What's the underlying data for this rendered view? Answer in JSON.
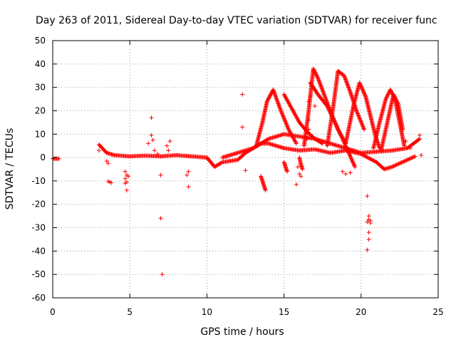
{
  "chart_data": {
    "type": "scatter",
    "title": "Day 263 of 2011, Sidereal Day-to-day VTEC variation (SDTVAR) for receiver func",
    "xlabel": "GPS time / hours",
    "ylabel": "SDTVAR / TECUs",
    "xlim": [
      0,
      25
    ],
    "ylim": [
      -60,
      50
    ],
    "xticks": [
      0,
      5,
      10,
      15,
      20,
      25
    ],
    "yticks": [
      -60,
      -50,
      -40,
      -30,
      -20,
      -10,
      0,
      10,
      20,
      30,
      40,
      50
    ],
    "grid": true,
    "marker": "+",
    "color": "#ff0000",
    "dense_tracks": [
      {
        "name": "track-early",
        "x": [
          0.0,
          0.2,
          0.4
        ],
        "y": [
          -0.5,
          -0.5,
          -0.5
        ]
      },
      {
        "name": "track-main-low",
        "x": [
          3.0,
          3.5,
          4.0,
          5.0,
          6.0,
          7.0,
          8.0,
          9.0,
          10.0,
          10.5,
          11.0,
          12.0,
          12.5,
          13.0,
          13.5,
          14.0,
          15.0,
          16.0,
          17.0,
          18.0,
          19.0,
          20.0,
          21.0,
          21.5,
          22.0,
          23.0,
          23.5
        ],
        "y": [
          5.5,
          2.0,
          1.0,
          0.5,
          0.8,
          0.5,
          1.0,
          0.5,
          0.0,
          -4.0,
          -2.0,
          -1.0,
          2.0,
          4.0,
          6.0,
          6.0,
          4.0,
          3.0,
          3.5,
          2.0,
          3.0,
          1.5,
          -2.0,
          -5.0,
          -4.0,
          -1.0,
          0.5
        ]
      },
      {
        "name": "track-main-high",
        "x": [
          11.0,
          12.0,
          13.0,
          14.0,
          15.0,
          16.0,
          17.0,
          18.0,
          19.0,
          20.0,
          21.0,
          22.0,
          23.0,
          23.8
        ],
        "y": [
          0.0,
          2.0,
          4.0,
          8.0,
          10.0,
          9.0,
          8.0,
          6.0,
          4.0,
          2.0,
          2.5,
          3.0,
          4.0,
          8.0
        ]
      },
      {
        "name": "arc-14",
        "x": [
          13.2,
          13.6,
          13.9,
          14.3,
          14.8,
          15.3,
          15.8
        ],
        "y": [
          5.0,
          15.0,
          24.0,
          29.0,
          20.0,
          12.0,
          6.0
        ]
      },
      {
        "name": "arc-15",
        "x": [
          15.0,
          15.5,
          16.0,
          16.5,
          17.0,
          17.5
        ],
        "y": [
          27.0,
          21.0,
          15.0,
          11.0,
          8.0,
          6.0
        ]
      },
      {
        "name": "arc-17",
        "x": [
          16.3,
          16.6,
          16.9,
          17.2,
          17.6,
          18.0,
          18.5,
          19.0
        ],
        "y": [
          5.0,
          20.0,
          38.0,
          34.0,
          27.0,
          20.0,
          12.0,
          6.0
        ]
      },
      {
        "name": "arc-18",
        "x": [
          16.7,
          17.2,
          17.8,
          18.3,
          18.8,
          19.2,
          19.6
        ],
        "y": [
          32.0,
          27.0,
          22.0,
          15.0,
          8.0,
          2.0,
          -4.0
        ]
      },
      {
        "name": "arc-19",
        "x": [
          17.8,
          18.2,
          18.5,
          18.9,
          19.3,
          19.7,
          20.2
        ],
        "y": [
          5.0,
          22.0,
          37.0,
          35.0,
          28.0,
          20.0,
          12.0
        ]
      },
      {
        "name": "arc-20",
        "x": [
          19.0,
          19.5,
          19.9,
          20.3,
          20.6,
          20.9,
          21.2
        ],
        "y": [
          6.0,
          22.0,
          32.0,
          26.0,
          18.0,
          10.0,
          4.0
        ]
      },
      {
        "name": "arc-22",
        "x": [
          20.8,
          21.2,
          21.6,
          21.9,
          22.2,
          22.5,
          22.8
        ],
        "y": [
          4.0,
          15.0,
          25.0,
          29.0,
          25.0,
          15.0,
          5.0
        ]
      },
      {
        "name": "arc-22b",
        "x": [
          21.3,
          21.7,
          22.1,
          22.4,
          22.7
        ],
        "y": [
          3.0,
          15.0,
          27.0,
          23.0,
          12.0
        ]
      },
      {
        "name": "dip-14",
        "x": [
          13.5,
          13.6,
          13.7,
          13.8
        ],
        "y": [
          -8.0,
          -10.0,
          -12.0,
          -14.0
        ]
      },
      {
        "name": "dip-15",
        "x": [
          15.0,
          15.1,
          15.2
        ],
        "y": [
          -2.0,
          -4.0,
          -6.0
        ]
      },
      {
        "name": "dip-16",
        "x": [
          16.0,
          16.1,
          16.2
        ],
        "y": [
          0.0,
          -3.0,
          -5.0
        ]
      }
    ],
    "points": [
      {
        "x": 3.7,
        "y": -10.5
      },
      {
        "x": 3.6,
        "y": -10.2
      },
      {
        "x": 3.8,
        "y": -10.8
      },
      {
        "x": 4.7,
        "y": -6.0
      },
      {
        "x": 4.8,
        "y": -7.5
      },
      {
        "x": 4.7,
        "y": -9.0
      },
      {
        "x": 4.8,
        "y": -10.5
      },
      {
        "x": 4.7,
        "y": -11.0
      },
      {
        "x": 4.8,
        "y": -14.0
      },
      {
        "x": 4.9,
        "y": -8.0
      },
      {
        "x": 6.2,
        "y": 6.0
      },
      {
        "x": 6.4,
        "y": 17.0
      },
      {
        "x": 6.4,
        "y": 9.5
      },
      {
        "x": 6.5,
        "y": 7.5
      },
      {
        "x": 6.6,
        "y": 3.0
      },
      {
        "x": 6.8,
        "y": 1.5
      },
      {
        "x": 7.0,
        "y": -7.5
      },
      {
        "x": 7.0,
        "y": -26.0
      },
      {
        "x": 7.1,
        "y": -50.0
      },
      {
        "x": 7.4,
        "y": 5.0
      },
      {
        "x": 7.5,
        "y": 3.0
      },
      {
        "x": 7.6,
        "y": 7.0
      },
      {
        "x": 8.8,
        "y": -12.5
      },
      {
        "x": 8.7,
        "y": -7.5
      },
      {
        "x": 8.8,
        "y": -6.0
      },
      {
        "x": 12.3,
        "y": 27.0
      },
      {
        "x": 12.3,
        "y": 13.0
      },
      {
        "x": 12.5,
        "y": -5.5
      },
      {
        "x": 3.0,
        "y": 3.0
      },
      {
        "x": 3.5,
        "y": -1.5
      },
      {
        "x": 3.6,
        "y": -2.5
      },
      {
        "x": 15.9,
        "y": -4.0
      },
      {
        "x": 16.0,
        "y": -7.0
      },
      {
        "x": 16.1,
        "y": -8.0
      },
      {
        "x": 15.8,
        "y": -11.5
      },
      {
        "x": 16.5,
        "y": 8.0
      },
      {
        "x": 16.6,
        "y": 12.0
      },
      {
        "x": 16.6,
        "y": 16.0
      },
      {
        "x": 16.6,
        "y": 24.0
      },
      {
        "x": 16.7,
        "y": 26.0
      },
      {
        "x": 17.0,
        "y": 22.0
      },
      {
        "x": 18.8,
        "y": -6.0
      },
      {
        "x": 19.0,
        "y": -7.0
      },
      {
        "x": 19.3,
        "y": -6.5
      },
      {
        "x": 20.4,
        "y": -16.5
      },
      {
        "x": 20.5,
        "y": -25.0
      },
      {
        "x": 20.5,
        "y": -26.5
      },
      {
        "x": 20.6,
        "y": -27.0
      },
      {
        "x": 20.4,
        "y": -27.5
      },
      {
        "x": 20.6,
        "y": -28.0
      },
      {
        "x": 20.5,
        "y": -32.0
      },
      {
        "x": 20.5,
        "y": -35.0
      },
      {
        "x": 20.4,
        "y": -39.5
      },
      {
        "x": 23.8,
        "y": 9.5
      },
      {
        "x": 23.9,
        "y": 1.0
      },
      {
        "x": 22.9,
        "y": 7.0
      },
      {
        "x": 23.2,
        "y": 4.0
      }
    ]
  }
}
